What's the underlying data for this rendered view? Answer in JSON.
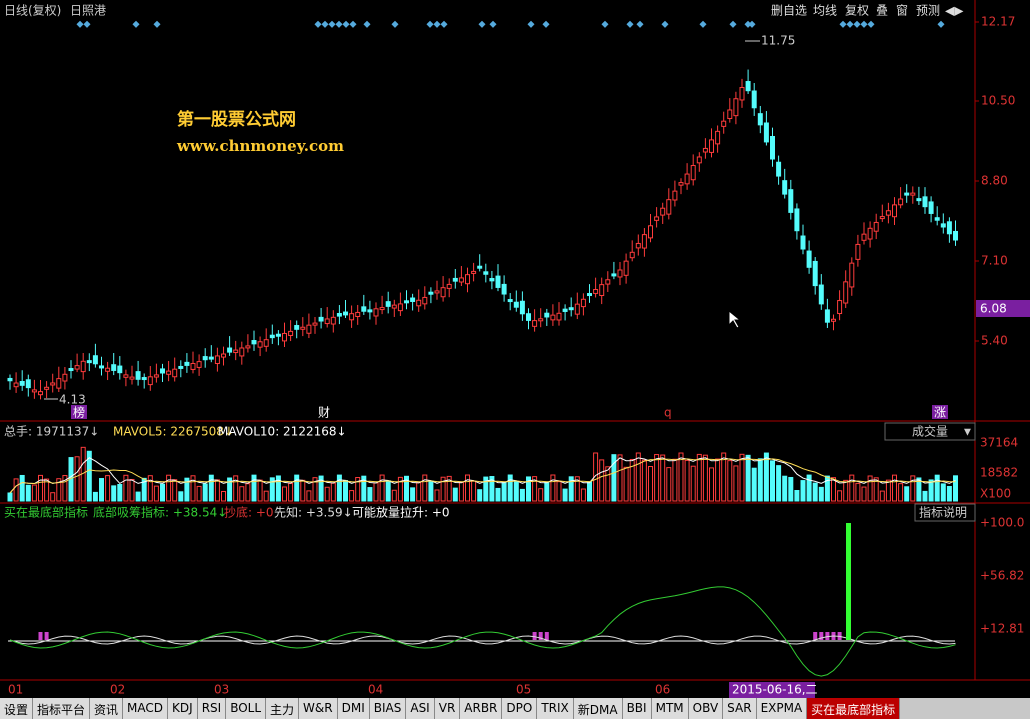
{
  "header": {
    "mode": "日线(复权)",
    "stock": "日照港",
    "buttons": [
      "删自选",
      "均线",
      "复权",
      "叠",
      "窗",
      "预测",
      "◀▶"
    ]
  },
  "price_panel": {
    "axis_labels": [
      "12.17",
      "10.50",
      "8.80",
      "7.10",
      "5.40"
    ],
    "current_price": "6.08",
    "high_label": "11.75",
    "low_label": "4.13",
    "watermark": [
      "第一股票公式网",
      "www.chnmoney.com"
    ],
    "event_markers": [
      "榜",
      "财",
      "q",
      "涨"
    ]
  },
  "volume_panel": {
    "items": [
      "总手: 1971137↓",
      "MAVOL5: 2267508↓",
      "MAVOL10: 2122168↓"
    ],
    "selector": "成交量",
    "axis_labels": [
      "37164",
      "18582",
      "X100"
    ]
  },
  "indicator_panel": {
    "items": [
      "买在最底部指标",
      "底部吸筹指标: +38.54↓",
      "抄底: +0",
      "先知: +3.59↓",
      "可能放量拉升: +0"
    ],
    "help": "指标说明",
    "axis_labels": [
      "+100.0",
      "+56.82",
      "+12.81"
    ]
  },
  "time_axis": {
    "months": [
      "01",
      "02",
      "03",
      "04",
      "05",
      "06"
    ],
    "cursor_date": "2015-06-16,二"
  },
  "tabs": [
    "设置",
    "指标平台",
    "资讯",
    "MACD",
    "KDJ",
    "RSI",
    "BOLL",
    "主力",
    "W&R",
    "DMI",
    "BIAS",
    "ASI",
    "VR",
    "ARBR",
    "DPO",
    "TRIX",
    "新DMA",
    "BBI",
    "MTM",
    "OBV",
    "SAR",
    "EXPMA",
    "买在最底部指标"
  ]
}
